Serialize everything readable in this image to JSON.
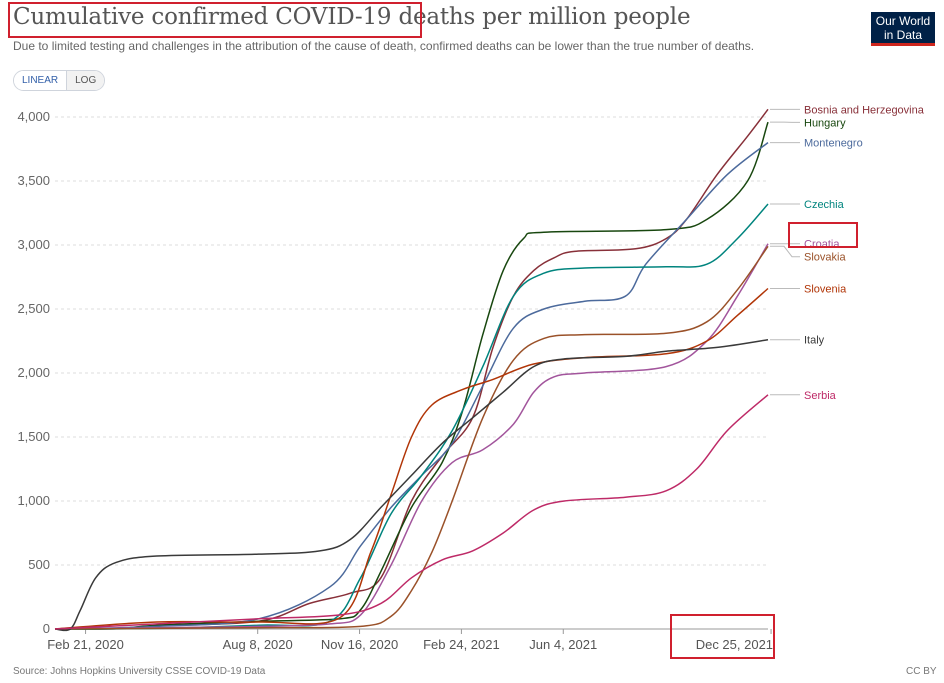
{
  "title": "Cumulative confirmed COVID-19 deaths per million people",
  "subtitle": "Due to limited testing and challenges in the attribution of the cause of death, confirmed deaths can be lower than the true number of deaths.",
  "logo": {
    "line1": "Our World",
    "line2": "in Data"
  },
  "scale_toggle": {
    "linear": "LINEAR",
    "log": "LOG",
    "selected": "LINEAR"
  },
  "source": "Source: Johns Hopkins University CSSE COVID-19 Data",
  "license": "CC BY",
  "highlight_color": "#d0202e",
  "chart_data": {
    "type": "line",
    "title": "Cumulative confirmed COVID-19 deaths per million people",
    "xlabel": "",
    "ylabel": "",
    "x_range": [
      0,
      700
    ],
    "ylim": [
      0,
      4000
    ],
    "y_ticks": [
      0,
      500,
      1000,
      1500,
      2000,
      2500,
      3000,
      3500,
      4000
    ],
    "y_tick_labels": [
      "0",
      "500",
      "1,000",
      "1,500",
      "2,000",
      "2,500",
      "3,000",
      "3,500",
      "4,000"
    ],
    "x_ticks": [
      {
        "day": 30,
        "label": "Feb 21, 2020"
      },
      {
        "day": 199,
        "label": "Aug 8, 2020"
      },
      {
        "day": 299,
        "label": "Nov 16, 2020"
      },
      {
        "day": 399,
        "label": "Feb 24, 2021"
      },
      {
        "day": 499,
        "label": "Jun 4, 2021"
      },
      {
        "day": 703,
        "label": "Dec 25, 2021"
      }
    ],
    "grid": true,
    "legend": "right-end labels",
    "series": [
      {
        "name": "Bosnia and Herzegovina",
        "color": "#883039",
        "end_value": 4060,
        "points": [
          [
            0,
            0
          ],
          [
            60,
            5
          ],
          [
            100,
            25
          ],
          [
            200,
            60
          ],
          [
            250,
            200
          ],
          [
            290,
            280
          ],
          [
            320,
            400
          ],
          [
            350,
            1000
          ],
          [
            380,
            1350
          ],
          [
            410,
            1650
          ],
          [
            430,
            2200
          ],
          [
            450,
            2600
          ],
          [
            470,
            2800
          ],
          [
            490,
            2900
          ],
          [
            510,
            2950
          ],
          [
            570,
            2970
          ],
          [
            600,
            3050
          ],
          [
            620,
            3200
          ],
          [
            650,
            3550
          ],
          [
            680,
            3850
          ],
          [
            700,
            4060
          ]
        ]
      },
      {
        "name": "Hungary",
        "color": "#18470f",
        "end_value": 3960,
        "points": [
          [
            0,
            0
          ],
          [
            60,
            2
          ],
          [
            100,
            30
          ],
          [
            200,
            60
          ],
          [
            280,
            80
          ],
          [
            300,
            150
          ],
          [
            320,
            450
          ],
          [
            350,
            950
          ],
          [
            380,
            1300
          ],
          [
            400,
            1700
          ],
          [
            420,
            2300
          ],
          [
            440,
            2800
          ],
          [
            460,
            3050
          ],
          [
            480,
            3100
          ],
          [
            600,
            3120
          ],
          [
            640,
            3200
          ],
          [
            680,
            3500
          ],
          [
            700,
            3960
          ]
        ]
      },
      {
        "name": "Montenegro",
        "color": "#4c6a9c",
        "end_value": 3800,
        "points": [
          [
            0,
            0
          ],
          [
            100,
            20
          ],
          [
            200,
            80
          ],
          [
            270,
            330
          ],
          [
            300,
            650
          ],
          [
            330,
            950
          ],
          [
            360,
            1200
          ],
          [
            390,
            1450
          ],
          [
            420,
            1900
          ],
          [
            450,
            2350
          ],
          [
            480,
            2500
          ],
          [
            520,
            2560
          ],
          [
            560,
            2600
          ],
          [
            580,
            2850
          ],
          [
            620,
            3200
          ],
          [
            660,
            3550
          ],
          [
            700,
            3800
          ]
        ]
      },
      {
        "name": "Czechia",
        "color": "#00847e",
        "end_value": 3320,
        "points": [
          [
            0,
            0
          ],
          [
            100,
            5
          ],
          [
            200,
            30
          ],
          [
            270,
            60
          ],
          [
            300,
            400
          ],
          [
            330,
            900
          ],
          [
            360,
            1200
          ],
          [
            390,
            1550
          ],
          [
            420,
            2050
          ],
          [
            450,
            2600
          ],
          [
            480,
            2780
          ],
          [
            520,
            2820
          ],
          [
            600,
            2830
          ],
          [
            640,
            2850
          ],
          [
            670,
            3050
          ],
          [
            700,
            3320
          ]
        ]
      },
      {
        "name": "Croatia",
        "color": "#a2559c",
        "end_value": 3010,
        "points": [
          [
            0,
            0
          ],
          [
            100,
            10
          ],
          [
            200,
            20
          ],
          [
            270,
            40
          ],
          [
            300,
            110
          ],
          [
            330,
            500
          ],
          [
            360,
            1000
          ],
          [
            390,
            1300
          ],
          [
            420,
            1400
          ],
          [
            450,
            1600
          ],
          [
            470,
            1850
          ],
          [
            490,
            1970
          ],
          [
            520,
            2000
          ],
          [
            600,
            2050
          ],
          [
            640,
            2250
          ],
          [
            670,
            2600
          ],
          [
            700,
            3010
          ]
        ]
      },
      {
        "name": "Slovakia",
        "color": "#9a5129",
        "end_value": 2990,
        "points": [
          [
            0,
            0
          ],
          [
            100,
            5
          ],
          [
            200,
            10
          ],
          [
            300,
            20
          ],
          [
            330,
            100
          ],
          [
            350,
            300
          ],
          [
            370,
            600
          ],
          [
            390,
            1000
          ],
          [
            420,
            1650
          ],
          [
            450,
            2100
          ],
          [
            480,
            2270
          ],
          [
            520,
            2300
          ],
          [
            600,
            2310
          ],
          [
            640,
            2400
          ],
          [
            670,
            2650
          ],
          [
            700,
            2990
          ]
        ]
      },
      {
        "name": "Slovenia",
        "color": "#b13507",
        "end_value": 2660,
        "points": [
          [
            0,
            0
          ],
          [
            100,
            55
          ],
          [
            200,
            55
          ],
          [
            280,
            90
          ],
          [
            310,
            600
          ],
          [
            330,
            1050
          ],
          [
            350,
            1500
          ],
          [
            370,
            1750
          ],
          [
            400,
            1870
          ],
          [
            430,
            1950
          ],
          [
            470,
            2070
          ],
          [
            520,
            2120
          ],
          [
            600,
            2150
          ],
          [
            640,
            2250
          ],
          [
            670,
            2450
          ],
          [
            700,
            2660
          ]
        ]
      },
      {
        "name": "Italy",
        "color": "#3a3a3a",
        "end_value": 2260,
        "points": [
          [
            0,
            0
          ],
          [
            15,
            0
          ],
          [
            25,
            150
          ],
          [
            40,
            400
          ],
          [
            60,
            520
          ],
          [
            100,
            570
          ],
          [
            200,
            585
          ],
          [
            260,
            610
          ],
          [
            290,
            700
          ],
          [
            320,
            950
          ],
          [
            350,
            1200
          ],
          [
            380,
            1450
          ],
          [
            410,
            1650
          ],
          [
            440,
            1850
          ],
          [
            470,
            2050
          ],
          [
            500,
            2110
          ],
          [
            560,
            2130
          ],
          [
            600,
            2170
          ],
          [
            650,
            2200
          ],
          [
            700,
            2260
          ]
        ]
      },
      {
        "name": "Serbia",
        "color": "#be2a67",
        "end_value": 1830,
        "points": [
          [
            0,
            0
          ],
          [
            100,
            40
          ],
          [
            200,
            80
          ],
          [
            280,
            110
          ],
          [
            320,
            200
          ],
          [
            350,
            400
          ],
          [
            380,
            540
          ],
          [
            410,
            610
          ],
          [
            440,
            750
          ],
          [
            470,
            930
          ],
          [
            500,
            1000
          ],
          [
            560,
            1030
          ],
          [
            600,
            1080
          ],
          [
            630,
            1250
          ],
          [
            660,
            1550
          ],
          [
            700,
            1830
          ]
        ]
      }
    ]
  }
}
